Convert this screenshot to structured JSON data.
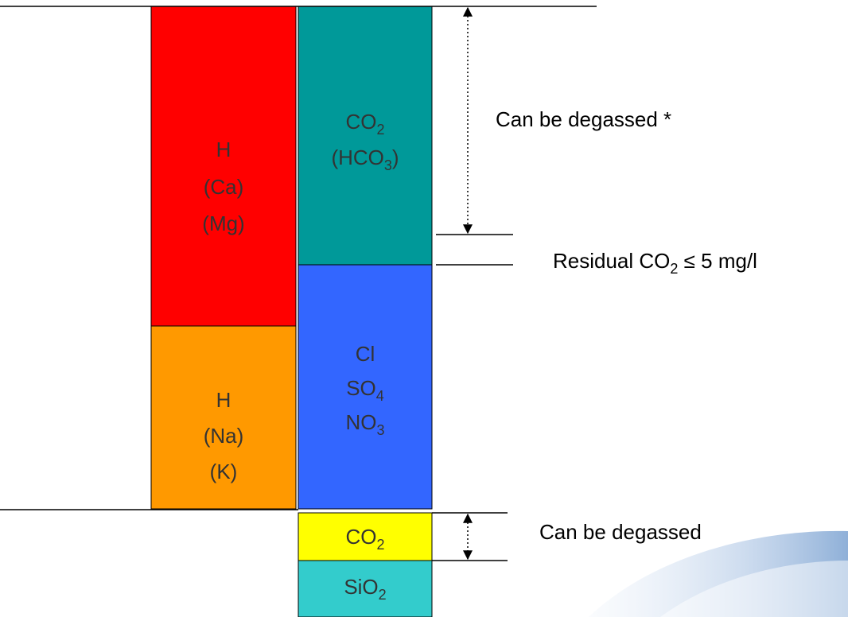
{
  "blocks": [
    {
      "color": "#ff0000",
      "lines": [
        {
          "main": "H"
        },
        {
          "main": "(Ca)"
        },
        {
          "main": "(Mg)"
        }
      ]
    },
    {
      "color": "#ff9900",
      "lines": [
        {
          "main": "H"
        },
        {
          "main": "(Na)"
        },
        {
          "main": "(K)"
        }
      ]
    },
    {
      "color": "#009999",
      "lines": [
        {
          "main": "CO",
          "sub": "2"
        },
        {
          "main": "(HCO",
          "sub": "3",
          "tail": ")"
        }
      ]
    },
    {
      "color": "#3366ff",
      "lines": [
        {
          "main": "Cl"
        },
        {
          "main": "SO",
          "sub": "4"
        },
        {
          "main": "NO",
          "sub": "3"
        }
      ]
    },
    {
      "color": "#ffff00",
      "lines": [
        {
          "main": "CO",
          "sub": "2"
        }
      ]
    },
    {
      "color": "#33cccc",
      "lines": [
        {
          "main": "SiO",
          "sub": "2"
        }
      ]
    }
  ],
  "annotations": [
    {
      "main": "Can be degassed *"
    },
    {
      "main": "Residual CO",
      "sub": "2",
      "tail": " ≤ 5 mg/l"
    },
    {
      "main": "Can be degassed"
    }
  ]
}
